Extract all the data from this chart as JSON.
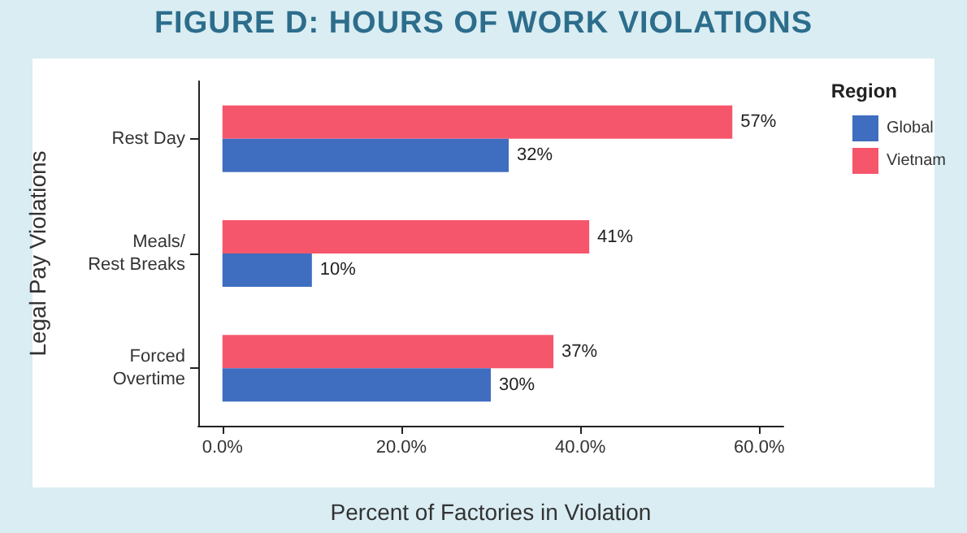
{
  "chart_data": {
    "type": "bar",
    "orientation": "horizontal",
    "title": "FIGURE D: HOURS OF WORK VIOLATIONS",
    "xlabel": "Percent of Factories in Violation",
    "ylabel": "Legal Pay Violations",
    "legend_title": "Region",
    "legend": "right",
    "grid": false,
    "categories": [
      "Rest Day",
      "Meals/\nRest Breaks",
      "Forced\nOvertime"
    ],
    "series": [
      {
        "name": "Global",
        "color": "#3f6dbf",
        "values": [
          32,
          10,
          30
        ],
        "value_labels": [
          "32%",
          "10%",
          "30%"
        ]
      },
      {
        "name": "Vietnam",
        "color": "#f6566c",
        "values": [
          57,
          41,
          37
        ],
        "value_labels": [
          "57%",
          "41%",
          "37%"
        ]
      }
    ],
    "xlim": [
      -2.7,
      62.7
    ],
    "xticks": [
      {
        "value": 0,
        "label": "0.0%"
      },
      {
        "value": 20,
        "label": "20.0%"
      },
      {
        "value": 40,
        "label": "40.0%"
      },
      {
        "value": 60,
        "label": "60.0%"
      }
    ]
  }
}
